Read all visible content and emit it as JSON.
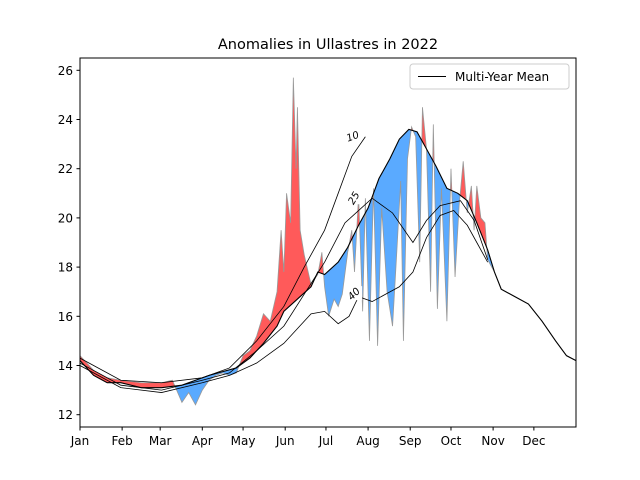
{
  "chart_data": {
    "type": "area",
    "title": "Anomalies in Ullastres in 2022",
    "xlabel": "",
    "ylabel": "",
    "ylim": [
      11.5,
      26.5
    ],
    "yticks": [
      12,
      14,
      16,
      18,
      20,
      22,
      24,
      26
    ],
    "x_categories": [
      "Jan",
      "Feb",
      "Mar",
      "Apr",
      "May",
      "Jun",
      "Jul",
      "Aug",
      "Sep",
      "Oct",
      "Nov",
      "Dec"
    ],
    "x_range_days": [
      0,
      365
    ],
    "grid": false,
    "legend": {
      "position": "top-right",
      "entries": [
        "Multi-Year Mean"
      ]
    },
    "colors": {
      "above": "#ff5a5a",
      "below": "#5aaaff",
      "observed": "#999999",
      "mean": "#000000"
    },
    "mean_series": {
      "name": "Multi-Year Mean",
      "points": [
        [
          0,
          14.2
        ],
        [
          10,
          13.6
        ],
        [
          20,
          13.3
        ],
        [
          30,
          13.3
        ],
        [
          45,
          13.1
        ],
        [
          60,
          13.1
        ],
        [
          75,
          13.2
        ],
        [
          85,
          13.4
        ],
        [
          95,
          13.6
        ],
        [
          105,
          13.75
        ],
        [
          115,
          13.9
        ],
        [
          125,
          14.3
        ],
        [
          135,
          14.9
        ],
        [
          145,
          15.6
        ],
        [
          150,
          16.2
        ],
        [
          160,
          16.7
        ],
        [
          170,
          17.2
        ],
        [
          175,
          17.8
        ],
        [
          180,
          17.7
        ],
        [
          190,
          18.2
        ],
        [
          197,
          18.8
        ],
        [
          205,
          19.7
        ],
        [
          212,
          20.4
        ],
        [
          220,
          21.6
        ],
        [
          228,
          22.4
        ],
        [
          235,
          23.2
        ],
        [
          242,
          23.6
        ],
        [
          248,
          23.5
        ],
        [
          255,
          22.8
        ],
        [
          262,
          22.1
        ],
        [
          270,
          21.2
        ],
        [
          278,
          21.0
        ],
        [
          285,
          20.7
        ],
        [
          292,
          19.8
        ],
        [
          300,
          18.7
        ],
        [
          305,
          17.8
        ],
        [
          310,
          17.1
        ],
        [
          320,
          16.8
        ],
        [
          330,
          16.5
        ],
        [
          340,
          15.8
        ],
        [
          350,
          15.0
        ],
        [
          358,
          14.4
        ],
        [
          365,
          14.2
        ]
      ]
    },
    "observed_series": {
      "name": "",
      "points": [
        [
          0,
          14.4
        ],
        [
          10,
          13.8
        ],
        [
          20,
          13.5
        ],
        [
          30,
          13.4
        ],
        [
          45,
          13.3
        ],
        [
          60,
          13.3
        ],
        [
          68,
          13.4
        ],
        [
          75,
          12.5
        ],
        [
          80,
          12.9
        ],
        [
          85,
          12.4
        ],
        [
          90,
          13.0
        ],
        [
          95,
          13.4
        ],
        [
          100,
          13.6
        ],
        [
          105,
          13.7
        ],
        [
          110,
          13.6
        ],
        [
          115,
          13.7
        ],
        [
          120,
          14.4
        ],
        [
          125,
          14.6
        ],
        [
          130,
          15.2
        ],
        [
          135,
          16.1
        ],
        [
          140,
          15.8
        ],
        [
          145,
          17.0
        ],
        [
          148,
          19.5
        ],
        [
          150,
          17.8
        ],
        [
          152,
          21.0
        ],
        [
          155,
          19.8
        ],
        [
          157,
          25.7
        ],
        [
          159,
          22.0
        ],
        [
          160,
          24.5
        ],
        [
          162,
          19.5
        ],
        [
          165,
          18.5
        ],
        [
          170,
          17.3
        ],
        [
          175,
          17.7
        ],
        [
          178,
          18.6
        ],
        [
          180,
          17.2
        ],
        [
          183,
          16.0
        ],
        [
          187,
          16.7
        ],
        [
          190,
          16.4
        ],
        [
          193,
          16.9
        ],
        [
          197,
          18.6
        ],
        [
          200,
          19.5
        ],
        [
          202,
          17.8
        ],
        [
          205,
          20.9
        ],
        [
          208,
          16.2
        ],
        [
          210,
          20.8
        ],
        [
          213,
          15.0
        ],
        [
          216,
          21.2
        ],
        [
          219,
          14.8
        ],
        [
          222,
          20.4
        ],
        [
          226,
          17.0
        ],
        [
          230,
          15.6
        ],
        [
          233,
          18.5
        ],
        [
          236,
          21.5
        ],
        [
          238,
          15.0
        ],
        [
          241,
          22.4
        ],
        [
          244,
          23.7
        ],
        [
          247,
          23.3
        ],
        [
          250,
          18.2
        ],
        [
          252,
          24.5
        ],
        [
          255,
          22.8
        ],
        [
          258,
          17.0
        ],
        [
          260,
          23.8
        ],
        [
          263,
          16.3
        ],
        [
          266,
          21.2
        ],
        [
          270,
          15.8
        ],
        [
          273,
          22.0
        ],
        [
          276,
          17.6
        ],
        [
          279,
          20.5
        ],
        [
          282,
          22.3
        ],
        [
          285,
          20.2
        ],
        [
          288,
          21.3
        ],
        [
          290,
          19.5
        ],
        [
          292,
          21.3
        ],
        [
          295,
          20.0
        ],
        [
          298,
          19.8
        ],
        [
          300,
          18.3
        ],
        [
          305,
          17.8
        ],
        [
          310,
          17.1
        ],
        [
          320,
          16.8
        ],
        [
          330,
          16.5
        ],
        [
          340,
          15.8
        ],
        [
          350,
          15.0
        ],
        [
          358,
          14.4
        ],
        [
          365,
          14.2
        ]
      ]
    },
    "contours": [
      {
        "label": "10",
        "points": [
          [
            0,
            14.3
          ],
          [
            30,
            13.4
          ],
          [
            60,
            13.3
          ],
          [
            90,
            13.5
          ],
          [
            110,
            13.9
          ],
          [
            130,
            15.0
          ],
          [
            150,
            16.4
          ],
          [
            165,
            18.0
          ],
          [
            180,
            19.5
          ],
          [
            190,
            21.0
          ],
          [
            200,
            22.5
          ],
          [
            210,
            23.3
          ]
        ]
      },
      {
        "label": "25",
        "points": [
          [
            0,
            14.1
          ],
          [
            30,
            13.2
          ],
          [
            60,
            13.0
          ],
          [
            90,
            13.4
          ],
          [
            110,
            13.7
          ],
          [
            130,
            14.6
          ],
          [
            150,
            15.6
          ],
          [
            165,
            16.9
          ],
          [
            180,
            18.2
          ],
          [
            195,
            19.8
          ],
          [
            205,
            20.3
          ],
          [
            215,
            20.8
          ],
          [
            230,
            20.2
          ],
          [
            245,
            19.0
          ],
          [
            255,
            19.9
          ],
          [
            265,
            20.5
          ],
          [
            280,
            20.7
          ],
          [
            290,
            19.9
          ],
          [
            300,
            18.3
          ]
        ]
      },
      {
        "label": "40",
        "points": [
          [
            0,
            14.0
          ],
          [
            30,
            13.1
          ],
          [
            60,
            12.9
          ],
          [
            90,
            13.3
          ],
          [
            110,
            13.6
          ],
          [
            130,
            14.1
          ],
          [
            150,
            14.9
          ],
          [
            160,
            15.5
          ],
          [
            170,
            16.1
          ],
          [
            180,
            16.2
          ],
          [
            190,
            15.7
          ],
          [
            198,
            16.0
          ],
          [
            205,
            16.8
          ],
          [
            215,
            16.6
          ],
          [
            225,
            16.9
          ],
          [
            235,
            17.2
          ],
          [
            245,
            17.8
          ],
          [
            255,
            19.2
          ],
          [
            265,
            20.1
          ],
          [
            275,
            20.3
          ],
          [
            285,
            19.7
          ],
          [
            292,
            19.0
          ],
          [
            300,
            18.2
          ]
        ]
      }
    ]
  }
}
